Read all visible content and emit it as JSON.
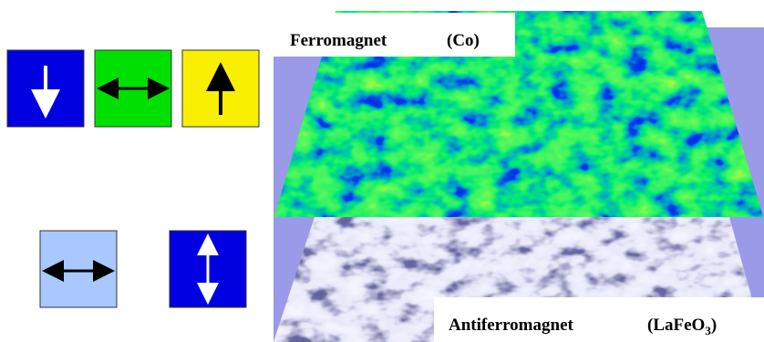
{
  "ferromagnet": {
    "name": "Ferromagnet",
    "formula": "(Co)"
  },
  "antiferromagnet": {
    "name": "Antiferromagnet",
    "formula": "(LaFeO",
    "formula_subscript": "3",
    "formula_end": ")"
  }
}
